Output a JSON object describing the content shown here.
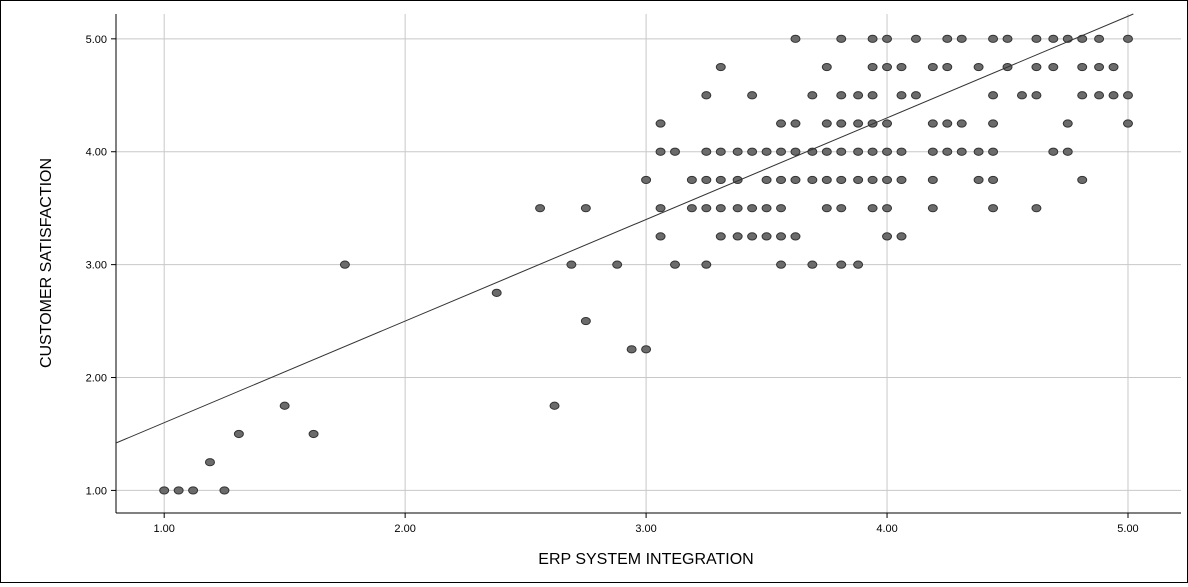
{
  "chart_data": {
    "type": "scatter",
    "xlabel": "ERP SYSTEM INTEGRATION",
    "ylabel": "CUSTOMER SATISFACTION",
    "xlim": [
      0.8,
      5.22
    ],
    "ylim": [
      0.8,
      5.22
    ],
    "xticks": [
      1.0,
      2.0,
      3.0,
      4.0,
      5.0
    ],
    "yticks": [
      1.0,
      2.0,
      3.0,
      4.0,
      5.0
    ],
    "xtick_labels": [
      "1.00",
      "2.00",
      "3.00",
      "4.00",
      "5.00"
    ],
    "ytick_labels": [
      "1.00",
      "2.00",
      "3.00",
      "4.00",
      "5.00"
    ],
    "grid": true,
    "fit_line": {
      "intercept": 0.7,
      "slope": 0.9
    },
    "marker_color": "#6b6b6b",
    "marker_edge": "#333333",
    "points": [
      [
        1.0,
        1.0
      ],
      [
        1.06,
        1.0
      ],
      [
        1.12,
        1.0
      ],
      [
        1.19,
        1.25
      ],
      [
        1.25,
        1.0
      ],
      [
        1.31,
        1.5
      ],
      [
        1.5,
        1.75
      ],
      [
        1.62,
        1.5
      ],
      [
        1.75,
        3.0
      ],
      [
        2.38,
        2.75
      ],
      [
        2.56,
        3.5
      ],
      [
        2.62,
        1.75
      ],
      [
        2.69,
        3.0
      ],
      [
        2.75,
        3.5
      ],
      [
        2.75,
        2.5
      ],
      [
        2.88,
        3.0
      ],
      [
        2.94,
        2.25
      ],
      [
        3.0,
        2.25
      ],
      [
        3.0,
        3.75
      ],
      [
        3.06,
        4.25
      ],
      [
        3.06,
        4.0
      ],
      [
        3.06,
        3.5
      ],
      [
        3.06,
        3.25
      ],
      [
        3.12,
        4.0
      ],
      [
        3.12,
        3.0
      ],
      [
        3.19,
        3.75
      ],
      [
        3.19,
        3.5
      ],
      [
        3.25,
        4.5
      ],
      [
        3.25,
        4.0
      ],
      [
        3.25,
        3.75
      ],
      [
        3.25,
        3.5
      ],
      [
        3.25,
        3.0
      ],
      [
        3.31,
        4.75
      ],
      [
        3.31,
        4.0
      ],
      [
        3.31,
        3.75
      ],
      [
        3.31,
        3.5
      ],
      [
        3.31,
        3.25
      ],
      [
        3.38,
        4.0
      ],
      [
        3.38,
        3.75
      ],
      [
        3.38,
        3.5
      ],
      [
        3.38,
        3.25
      ],
      [
        3.44,
        4.5
      ],
      [
        3.44,
        4.0
      ],
      [
        3.44,
        3.5
      ],
      [
        3.44,
        3.25
      ],
      [
        3.5,
        4.0
      ],
      [
        3.5,
        3.75
      ],
      [
        3.5,
        3.5
      ],
      [
        3.5,
        3.25
      ],
      [
        3.56,
        4.25
      ],
      [
        3.56,
        4.0
      ],
      [
        3.56,
        3.75
      ],
      [
        3.56,
        3.5
      ],
      [
        3.56,
        3.25
      ],
      [
        3.56,
        3.0
      ],
      [
        3.62,
        5.0
      ],
      [
        3.62,
        4.25
      ],
      [
        3.62,
        4.0
      ],
      [
        3.62,
        3.75
      ],
      [
        3.62,
        3.25
      ],
      [
        3.69,
        4.5
      ],
      [
        3.69,
        4.0
      ],
      [
        3.69,
        3.75
      ],
      [
        3.69,
        3.0
      ],
      [
        3.75,
        4.75
      ],
      [
        3.75,
        4.25
      ],
      [
        3.75,
        4.0
      ],
      [
        3.75,
        3.75
      ],
      [
        3.75,
        3.5
      ],
      [
        3.81,
        5.0
      ],
      [
        3.81,
        4.5
      ],
      [
        3.81,
        4.25
      ],
      [
        3.81,
        4.0
      ],
      [
        3.81,
        3.75
      ],
      [
        3.81,
        3.5
      ],
      [
        3.81,
        3.0
      ],
      [
        3.88,
        4.5
      ],
      [
        3.88,
        4.25
      ],
      [
        3.88,
        4.0
      ],
      [
        3.88,
        3.75
      ],
      [
        3.88,
        3.0
      ],
      [
        3.94,
        5.0
      ],
      [
        3.94,
        4.75
      ],
      [
        3.94,
        4.5
      ],
      [
        3.94,
        4.25
      ],
      [
        3.94,
        4.0
      ],
      [
        3.94,
        3.75
      ],
      [
        3.94,
        3.5
      ],
      [
        4.0,
        5.0
      ],
      [
        4.0,
        4.75
      ],
      [
        4.0,
        4.25
      ],
      [
        4.0,
        4.0
      ],
      [
        4.0,
        3.75
      ],
      [
        4.0,
        3.5
      ],
      [
        4.0,
        3.25
      ],
      [
        4.06,
        4.75
      ],
      [
        4.06,
        4.5
      ],
      [
        4.06,
        4.0
      ],
      [
        4.06,
        3.75
      ],
      [
        4.06,
        3.25
      ],
      [
        4.12,
        5.0
      ],
      [
        4.12,
        4.5
      ],
      [
        4.19,
        4.75
      ],
      [
        4.19,
        4.25
      ],
      [
        4.19,
        4.0
      ],
      [
        4.19,
        3.75
      ],
      [
        4.19,
        3.5
      ],
      [
        4.25,
        5.0
      ],
      [
        4.25,
        4.75
      ],
      [
        4.25,
        4.25
      ],
      [
        4.25,
        4.0
      ],
      [
        4.31,
        5.0
      ],
      [
        4.31,
        4.25
      ],
      [
        4.31,
        4.0
      ],
      [
        4.38,
        4.75
      ],
      [
        4.38,
        4.0
      ],
      [
        4.38,
        3.75
      ],
      [
        4.44,
        5.0
      ],
      [
        4.44,
        4.5
      ],
      [
        4.44,
        4.25
      ],
      [
        4.44,
        4.0
      ],
      [
        4.44,
        3.75
      ],
      [
        4.44,
        3.5
      ],
      [
        4.5,
        5.0
      ],
      [
        4.5,
        4.75
      ],
      [
        4.56,
        4.5
      ],
      [
        4.62,
        5.0
      ],
      [
        4.62,
        4.75
      ],
      [
        4.62,
        4.5
      ],
      [
        4.62,
        3.5
      ],
      [
        4.69,
        5.0
      ],
      [
        4.69,
        4.75
      ],
      [
        4.69,
        4.0
      ],
      [
        4.75,
        5.0
      ],
      [
        4.75,
        4.25
      ],
      [
        4.75,
        4.0
      ],
      [
        4.81,
        5.0
      ],
      [
        4.81,
        4.75
      ],
      [
        4.81,
        4.5
      ],
      [
        4.81,
        3.75
      ],
      [
        4.88,
        5.0
      ],
      [
        4.88,
        4.75
      ],
      [
        4.88,
        4.5
      ],
      [
        4.94,
        4.75
      ],
      [
        4.94,
        4.5
      ],
      [
        5.0,
        5.0
      ],
      [
        5.0,
        4.5
      ],
      [
        5.0,
        4.25
      ]
    ]
  }
}
